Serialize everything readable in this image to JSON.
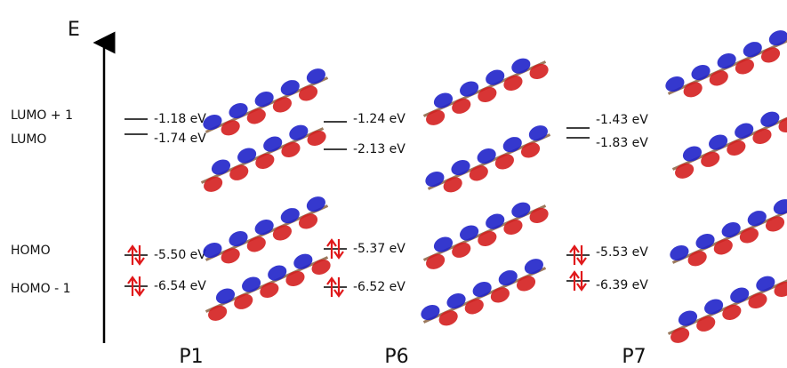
{
  "axis_label": "E",
  "level_names": [
    "LUMO + 1",
    "LUMO",
    "HOMO",
    "HOMO - 1"
  ],
  "molecules": [
    {
      "name": "P1",
      "levels": [
        "-1.18 eV",
        "-1.74 eV",
        "-5.50 eV",
        "-6.54 eV"
      ]
    },
    {
      "name": "P6",
      "levels": [
        "-1.24 eV",
        "-2.13 eV",
        "-5.37 eV",
        "-6.52 eV"
      ]
    },
    {
      "name": "P7",
      "levels": [
        "-1.43 eV",
        "-1.83 eV",
        "-5.53 eV",
        "-6.39 eV"
      ]
    }
  ]
}
